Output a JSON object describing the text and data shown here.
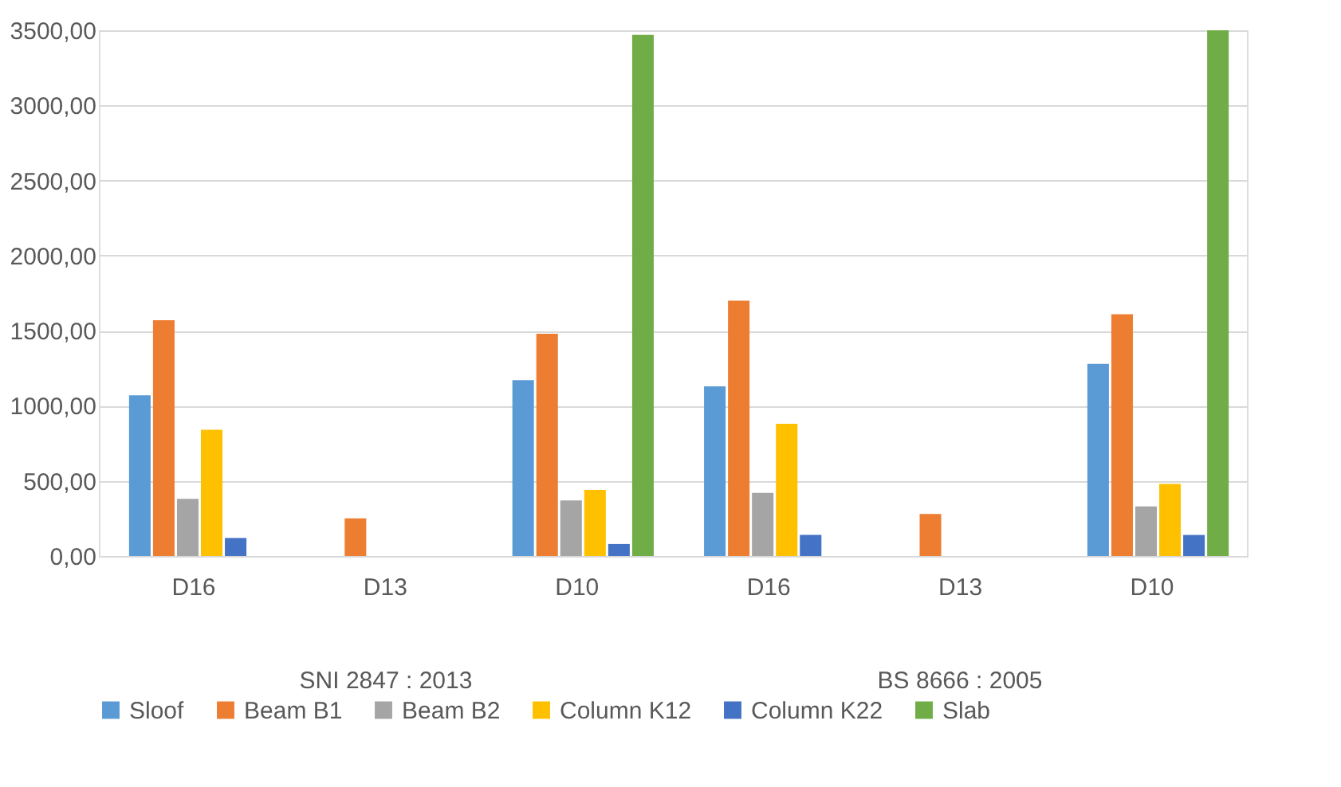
{
  "chart_data": {
    "type": "bar",
    "categories": [
      "D16",
      "D13",
      "D10",
      "D16",
      "D13",
      "D10"
    ],
    "series": [
      {
        "name": "Sloof",
        "color": "#5b9bd5",
        "values": [
          1070,
          null,
          1170,
          1130,
          null,
          1280
        ]
      },
      {
        "name": "Beam B1",
        "color": "#ed7d31",
        "values": [
          1570,
          250,
          1480,
          1700,
          280,
          1610
        ]
      },
      {
        "name": "Beam B2",
        "color": "#a5a5a5",
        "values": [
          380,
          null,
          370,
          420,
          null,
          330
        ]
      },
      {
        "name": "Column K12",
        "color": "#ffc000",
        "values": [
          840,
          null,
          440,
          880,
          null,
          480
        ]
      },
      {
        "name": "Column K22",
        "color": "#4472c4",
        "values": [
          120,
          null,
          80,
          140,
          null,
          140
        ]
      },
      {
        "name": "Slab",
        "color": "#70ad47",
        "values": [
          null,
          null,
          3470,
          null,
          null,
          3500
        ]
      }
    ],
    "annotations": [
      "SNI 2847 : 2013",
      "BS 8666 : 2005"
    ],
    "ylim": [
      0,
      3500
    ],
    "yticks": [
      {
        "value": 0,
        "label": "0,00"
      },
      {
        "value": 500,
        "label": "500,00"
      },
      {
        "value": 1000,
        "label": "1000,00"
      },
      {
        "value": 1500,
        "label": "1500,00"
      },
      {
        "value": 2000,
        "label": "2000,00"
      },
      {
        "value": 2500,
        "label": "2500,00"
      },
      {
        "value": 3000,
        "label": "3000,00"
      },
      {
        "value": 3500,
        "label": "3500,00"
      }
    ],
    "grid": "y",
    "legend": "bottom"
  }
}
